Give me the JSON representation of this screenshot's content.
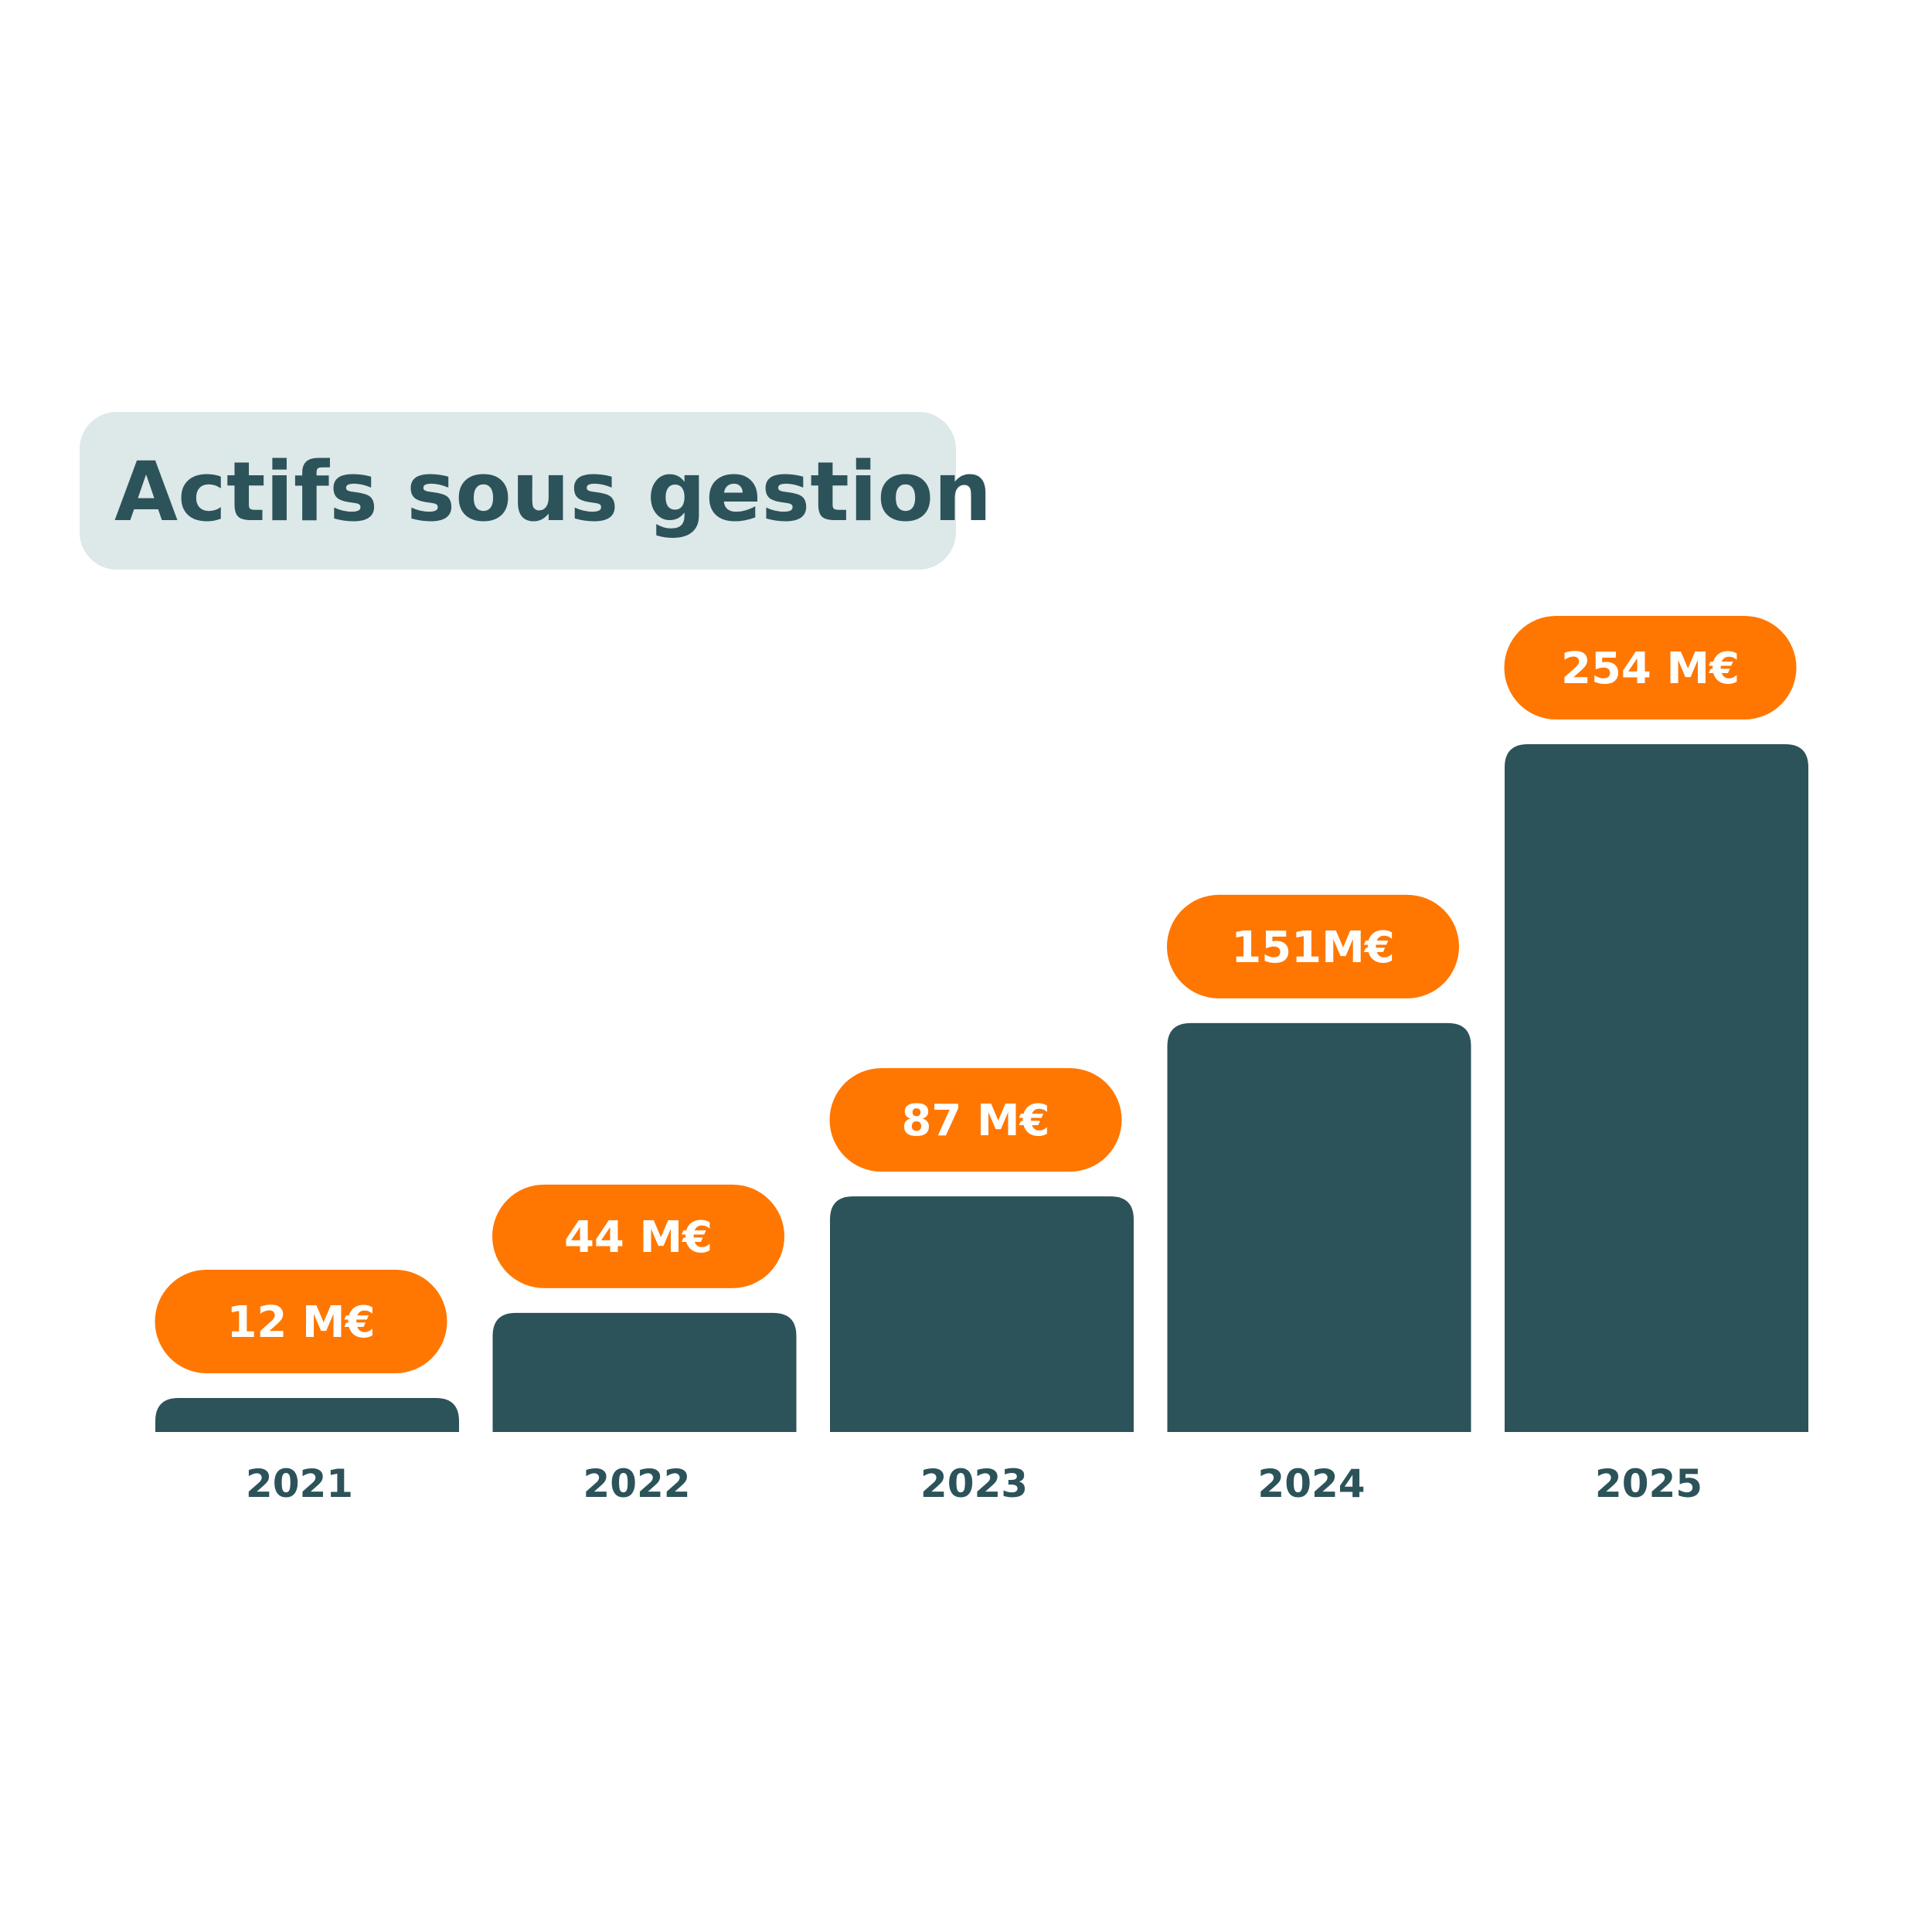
{
  "colors": {
    "bar": "#2c5359",
    "label_pill": "#ff7700",
    "title_background": "#dde8e9",
    "title_text": "#2c5359",
    "label_text": "#ffffff"
  },
  "chart_data": {
    "type": "bar",
    "title": "Actifs sous gestion",
    "unit": "M€",
    "categories": [
      "2021",
      "2022",
      "2023",
      "2024",
      "2025"
    ],
    "values": [
      12,
      44,
      87,
      151,
      254
    ],
    "data_labels": [
      "12 M€",
      "44 M€",
      "87 M€",
      "151M€",
      "254 M€"
    ],
    "xlabel": "",
    "ylabel": "",
    "ylim": [
      0,
      254
    ],
    "grid": false,
    "legend": "none"
  }
}
